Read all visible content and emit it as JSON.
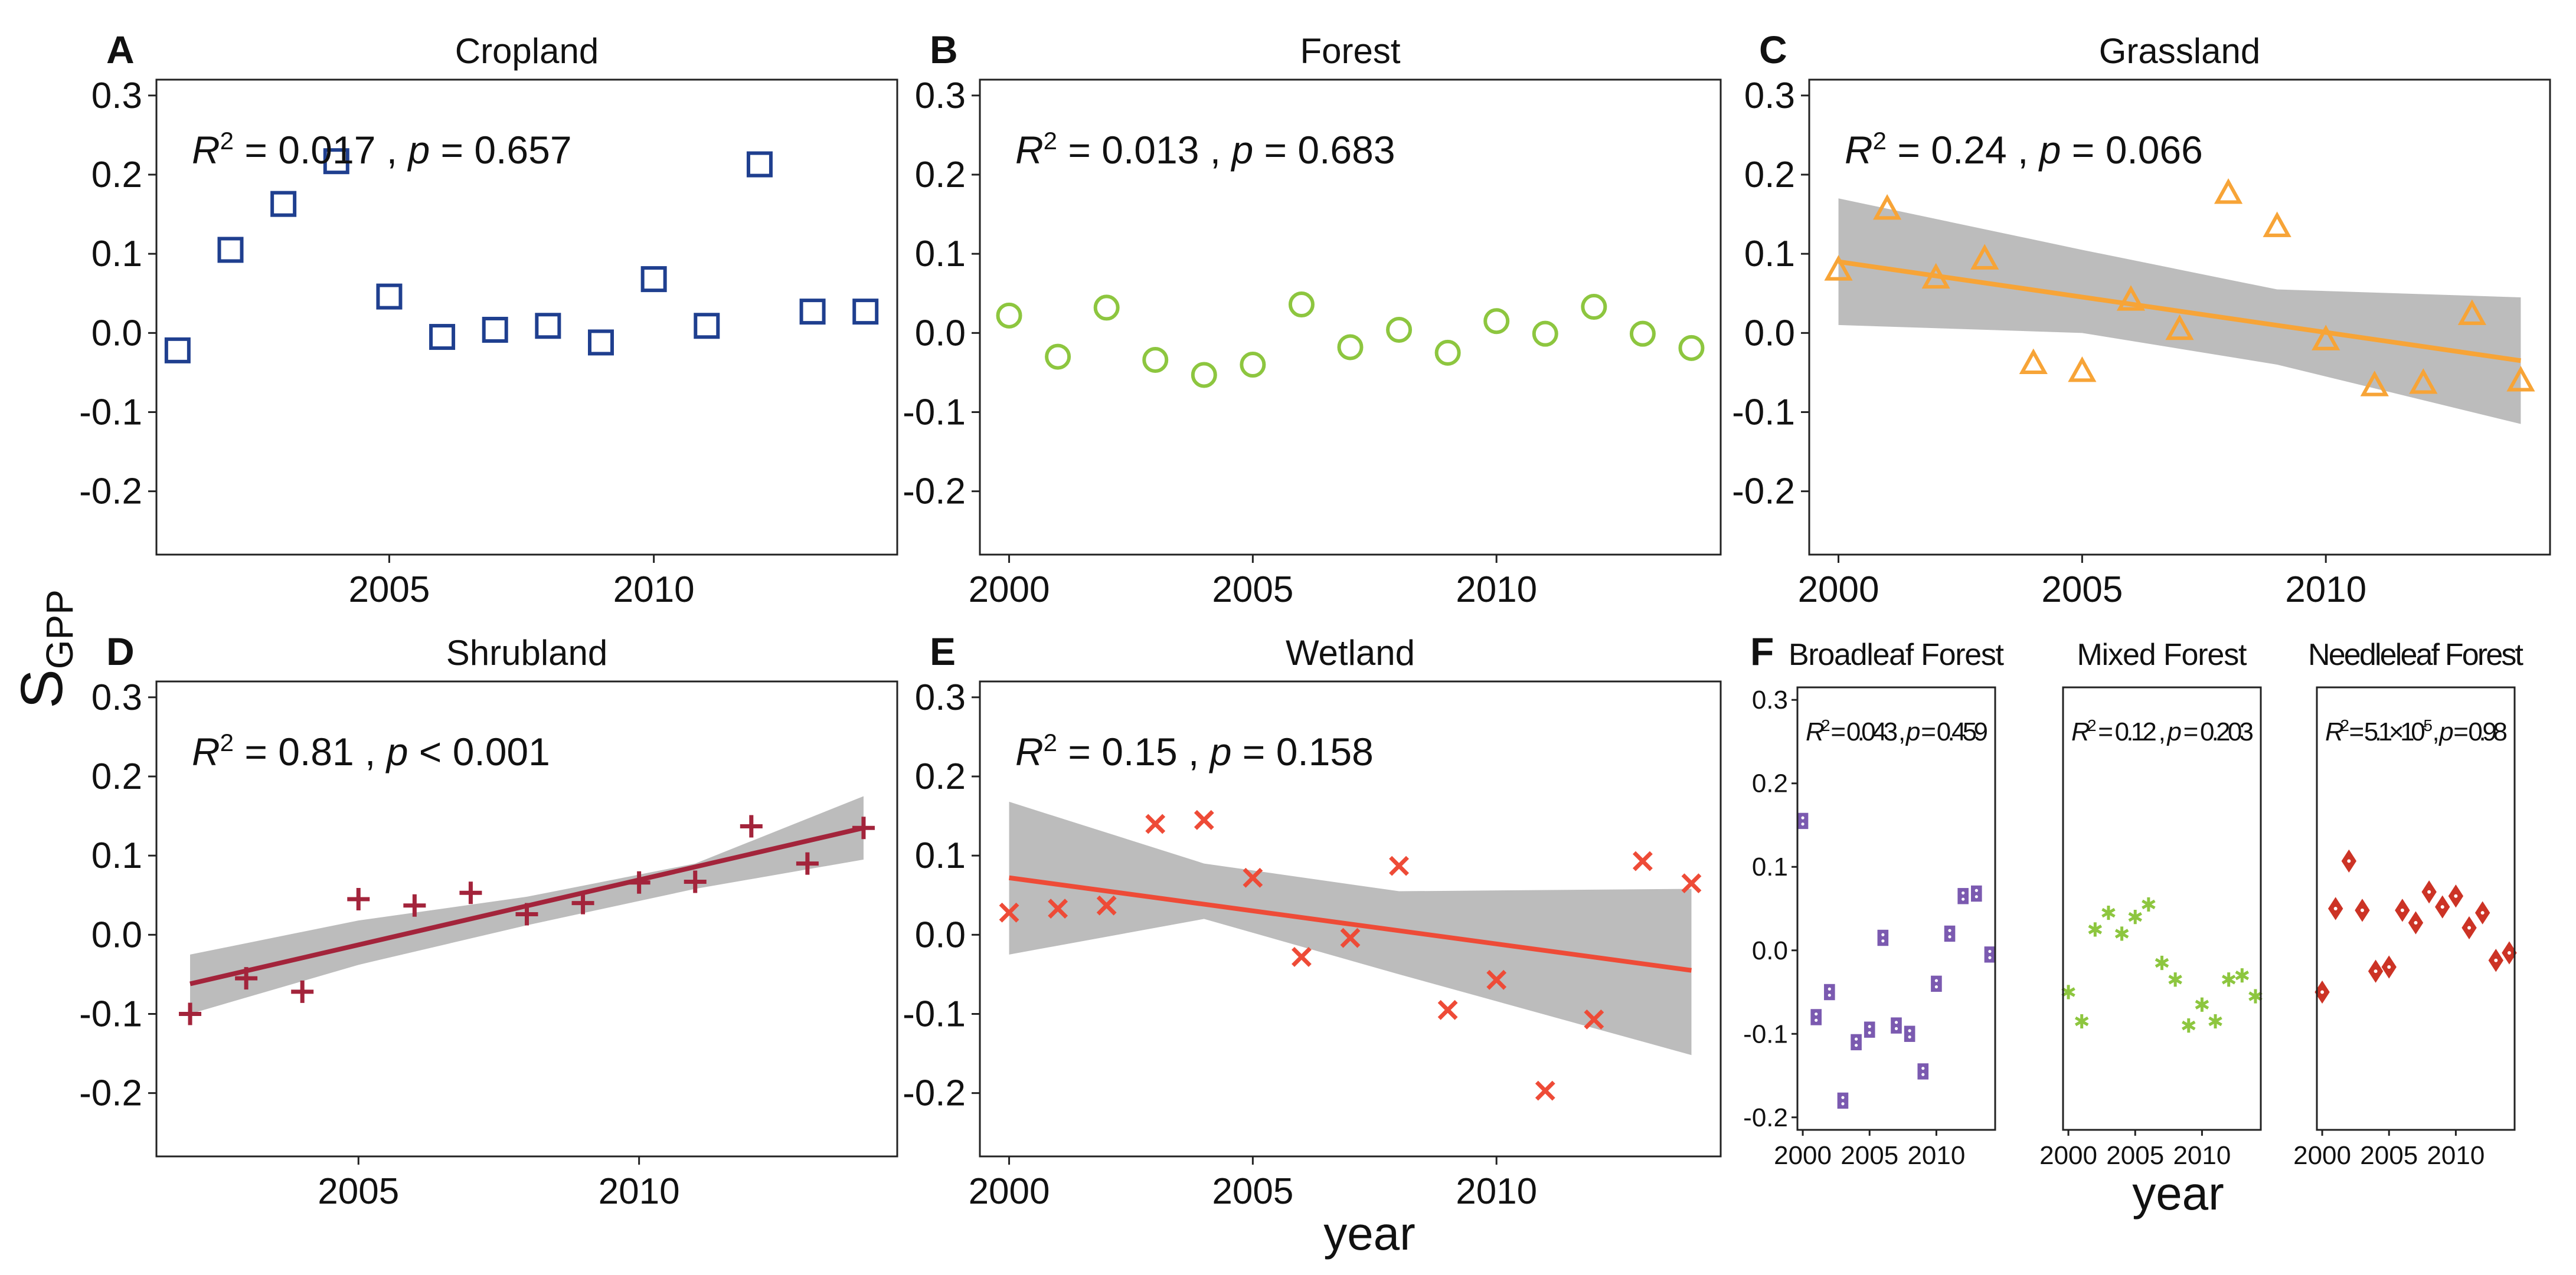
{
  "figure": {
    "ylabel": "S",
    "ylabel_subscript": "GPP",
    "xlabel_main": "year",
    "xlabel_f": "year"
  },
  "chart_data": [
    {
      "id": "A",
      "letter": "A",
      "type": "scatter",
      "title": "Cropland",
      "annotation": {
        "r2": "0.017",
        "p_sym": "=",
        "p": "0.657"
      },
      "marker": "square",
      "color": "#1f3f8f",
      "xlim": [
        2000.6,
        2014.6
      ],
      "ylim": [
        -0.28,
        0.32
      ],
      "xticks": [
        2005,
        2010
      ],
      "yticks": [
        -0.2,
        -0.1,
        0.0,
        0.1,
        0.2,
        0.3
      ],
      "yticklabels": [
        "-0.2",
        "-0.1",
        "0.0",
        "0.1",
        "0.2",
        "0.3"
      ],
      "x": [
        2001,
        2002,
        2003,
        2004,
        2005,
        2006,
        2007,
        2008,
        2009,
        2010,
        2011,
        2012,
        2013,
        2014
      ],
      "y": [
        -0.022,
        0.105,
        0.163,
        0.217,
        0.046,
        -0.005,
        0.004,
        0.009,
        -0.012,
        0.068,
        0.009,
        0.213,
        0.027,
        0.027
      ]
    },
    {
      "id": "B",
      "letter": "B",
      "type": "scatter",
      "title": "Forest",
      "annotation": {
        "r2": "0.013",
        "p_sym": "=",
        "p": "0.683"
      },
      "marker": "circle",
      "color": "#8dc63f",
      "xlim": [
        1999.4,
        2014.6
      ],
      "ylim": [
        -0.28,
        0.32
      ],
      "xticks": [
        2000,
        2005,
        2010
      ],
      "yticks": [
        -0.2,
        -0.1,
        0.0,
        0.1,
        0.2,
        0.3
      ],
      "yticklabels": [
        "-0.2",
        "-0.1",
        "0.0",
        "0.1",
        "0.2",
        "0.3"
      ],
      "x": [
        2000,
        2001,
        2002,
        2003,
        2004,
        2005,
        2006,
        2007,
        2008,
        2009,
        2010,
        2011,
        2012,
        2013,
        2014
      ],
      "y": [
        0.022,
        -0.03,
        0.032,
        -0.034,
        -0.053,
        -0.04,
        0.036,
        -0.018,
        0.004,
        -0.025,
        0.015,
        -0.001,
        0.033,
        -0.001,
        -0.019
      ]
    },
    {
      "id": "C",
      "letter": "C",
      "type": "scatter",
      "title": "Grassland",
      "annotation": {
        "r2": "0.24",
        "p_sym": "=",
        "p": "0.066"
      },
      "marker": "triangle",
      "color": "#f7a437",
      "trend": {
        "x0": 2000,
        "y0": 0.09,
        "x1": 2014,
        "y1": -0.035,
        "color": "#f7a437"
      },
      "band": {
        "upper": [
          [
            2000,
            0.17
          ],
          [
            2005,
            0.105
          ],
          [
            2009,
            0.055
          ],
          [
            2014,
            0.045
          ]
        ],
        "lower": [
          [
            2000,
            0.01
          ],
          [
            2005,
            0.0
          ],
          [
            2009,
            -0.04
          ],
          [
            2014,
            -0.115
          ]
        ]
      },
      "xlim": [
        1999.4,
        2014.6
      ],
      "ylim": [
        -0.28,
        0.32
      ],
      "xticks": [
        2000,
        2005,
        2010
      ],
      "yticks": [
        -0.2,
        -0.1,
        0.0,
        0.1,
        0.2,
        0.3
      ],
      "yticklabels": [
        "-0.2",
        "-0.1",
        "0.0",
        "0.1",
        "0.2",
        "0.3"
      ],
      "x": [
        2000,
        2001,
        2002,
        2003,
        2004,
        2005,
        2006,
        2007,
        2008,
        2009,
        2010,
        2011,
        2012,
        2013,
        2014
      ],
      "y": [
        0.078,
        0.155,
        0.068,
        0.092,
        -0.04,
        -0.05,
        0.04,
        0.003,
        0.175,
        0.133,
        -0.01,
        -0.068,
        -0.065,
        0.022,
        -0.062
      ]
    },
    {
      "id": "D",
      "letter": "D",
      "type": "scatter",
      "title": "Shrubland",
      "annotation": {
        "r2": "0.81",
        "p_sym": "<",
        "p": "0.001"
      },
      "marker": "plus",
      "color": "#a3243b",
      "trend": {
        "x0": 2002,
        "y0": -0.062,
        "x1": 2014,
        "y1": 0.135,
        "color": "#a3243b"
      },
      "band": {
        "upper": [
          [
            2002,
            -0.025
          ],
          [
            2005,
            0.018
          ],
          [
            2008,
            0.048
          ],
          [
            2011,
            0.09
          ],
          [
            2014,
            0.175
          ]
        ],
        "lower": [
          [
            2002,
            -0.1
          ],
          [
            2005,
            -0.038
          ],
          [
            2008,
            0.012
          ],
          [
            2011,
            0.058
          ],
          [
            2014,
            0.095
          ]
        ]
      },
      "xlim": [
        2001.4,
        2014.6
      ],
      "ylim": [
        -0.28,
        0.32
      ],
      "xticks": [
        2005,
        2010
      ],
      "yticks": [
        -0.2,
        -0.1,
        0.0,
        0.1,
        0.2,
        0.3
      ],
      "yticklabels": [
        "-0.2",
        "-0.1",
        "0.0",
        "0.1",
        "0.2",
        "0.3"
      ],
      "x": [
        2002,
        2003,
        2004,
        2005,
        2006,
        2007,
        2008,
        2009,
        2010,
        2011,
        2012,
        2013,
        2014
      ],
      "y": [
        -0.1,
        -0.055,
        -0.072,
        0.045,
        0.037,
        0.053,
        0.026,
        0.04,
        0.066,
        0.067,
        0.137,
        0.09,
        0.135
      ]
    },
    {
      "id": "E",
      "letter": "E",
      "type": "scatter",
      "title": "Wetland",
      "annotation": {
        "r2": "0.15",
        "p_sym": "=",
        "p": "0.158"
      },
      "marker": "cross",
      "color": "#ee4b37",
      "trend": {
        "x0": 2000,
        "y0": 0.072,
        "x1": 2014,
        "y1": -0.045,
        "color": "#ee4b37"
      },
      "band": {
        "upper": [
          [
            2000,
            0.168
          ],
          [
            2004,
            0.09
          ],
          [
            2008,
            0.055
          ],
          [
            2014,
            0.058
          ]
        ],
        "lower": [
          [
            2000,
            -0.025
          ],
          [
            2004,
            0.02
          ],
          [
            2008,
            -0.05
          ],
          [
            2014,
            -0.152
          ]
        ]
      },
      "xlim": [
        1999.4,
        2014.6
      ],
      "ylim": [
        -0.28,
        0.32
      ],
      "xticks": [
        2000,
        2005,
        2010
      ],
      "yticks": [
        -0.2,
        -0.1,
        0.0,
        0.1,
        0.2,
        0.3
      ],
      "yticklabels": [
        "-0.2",
        "-0.1",
        "0.0",
        "0.1",
        "0.2",
        "0.3"
      ],
      "x": [
        2000,
        2001,
        2002,
        2003,
        2004,
        2005,
        2006,
        2007,
        2008,
        2009,
        2010,
        2011,
        2012,
        2013,
        2014
      ],
      "y": [
        0.028,
        0.033,
        0.037,
        0.14,
        0.145,
        0.072,
        -0.028,
        -0.004,
        0.087,
        -0.095,
        -0.057,
        -0.197,
        -0.107,
        0.093,
        0.065
      ]
    },
    {
      "id": "F1",
      "letter": "F",
      "type": "scatter",
      "title": "Broadleaf Forest",
      "annotation": {
        "r2": "0.043",
        "p_sym": "=",
        "p": "0.459"
      },
      "marker": "dotted-rect",
      "color": "#7b5ab0",
      "xlim": [
        1999.6,
        2014.4
      ],
      "ylim": [
        -0.215,
        0.315
      ],
      "xticks": [
        2000,
        2005,
        2010
      ],
      "yticks": [
        -0.2,
        -0.1,
        0.0,
        0.1,
        0.2,
        0.3
      ],
      "yticklabels": [
        "-0.2",
        "-0.1",
        "0.0",
        "0.1",
        "0.2",
        "0.3"
      ],
      "x": [
        2000,
        2001,
        2002,
        2003,
        2004,
        2005,
        2006,
        2007,
        2008,
        2009,
        2010,
        2011,
        2012,
        2013,
        2014
      ],
      "y": [
        0.155,
        -0.08,
        -0.05,
        -0.18,
        -0.11,
        -0.095,
        0.015,
        -0.09,
        -0.1,
        -0.145,
        -0.04,
        0.02,
        0.065,
        0.068,
        -0.005
      ]
    },
    {
      "id": "F2",
      "letter": "",
      "type": "scatter",
      "title": "Mixed Forest",
      "annotation": {
        "r2": "0.12",
        "p_sym": "=",
        "p": "0.203"
      },
      "marker": "asterisk",
      "color": "#8dc63f",
      "xlim": [
        1999.6,
        2014.4
      ],
      "ylim": [
        -0.215,
        0.315
      ],
      "xticks": [
        2000,
        2005,
        2010
      ],
      "yticks": [],
      "yticklabels": [],
      "x": [
        2000,
        2001,
        2002,
        2003,
        2004,
        2005,
        2006,
        2007,
        2008,
        2009,
        2010,
        2011,
        2012,
        2013,
        2014
      ],
      "y": [
        -0.05,
        -0.085,
        0.025,
        0.045,
        0.02,
        0.04,
        0.055,
        -0.015,
        -0.035,
        -0.09,
        -0.065,
        -0.085,
        -0.035,
        -0.03,
        -0.055
      ]
    },
    {
      "id": "F3",
      "letter": "",
      "type": "scatter",
      "title": "Needleleaf Forest",
      "annotation": {
        "r2": "5.1×10",
        "r2_exp": "-5",
        "p_sym": "=",
        "p": "0.98"
      },
      "marker": "diamond",
      "color": "#cc3325",
      "xlim": [
        1999.6,
        2014.4
      ],
      "ylim": [
        -0.215,
        0.315
      ],
      "xticks": [
        2000,
        2005,
        2010
      ],
      "yticks": [],
      "yticklabels": [],
      "x": [
        2000,
        2001,
        2002,
        2003,
        2004,
        2005,
        2006,
        2007,
        2008,
        2009,
        2010,
        2011,
        2012,
        2013,
        2014
      ],
      "y": [
        -0.05,
        0.05,
        0.107,
        0.048,
        -0.025,
        -0.02,
        0.048,
        0.033,
        0.07,
        0.052,
        0.065,
        0.027,
        0.045,
        -0.012,
        -0.003
      ]
    }
  ]
}
